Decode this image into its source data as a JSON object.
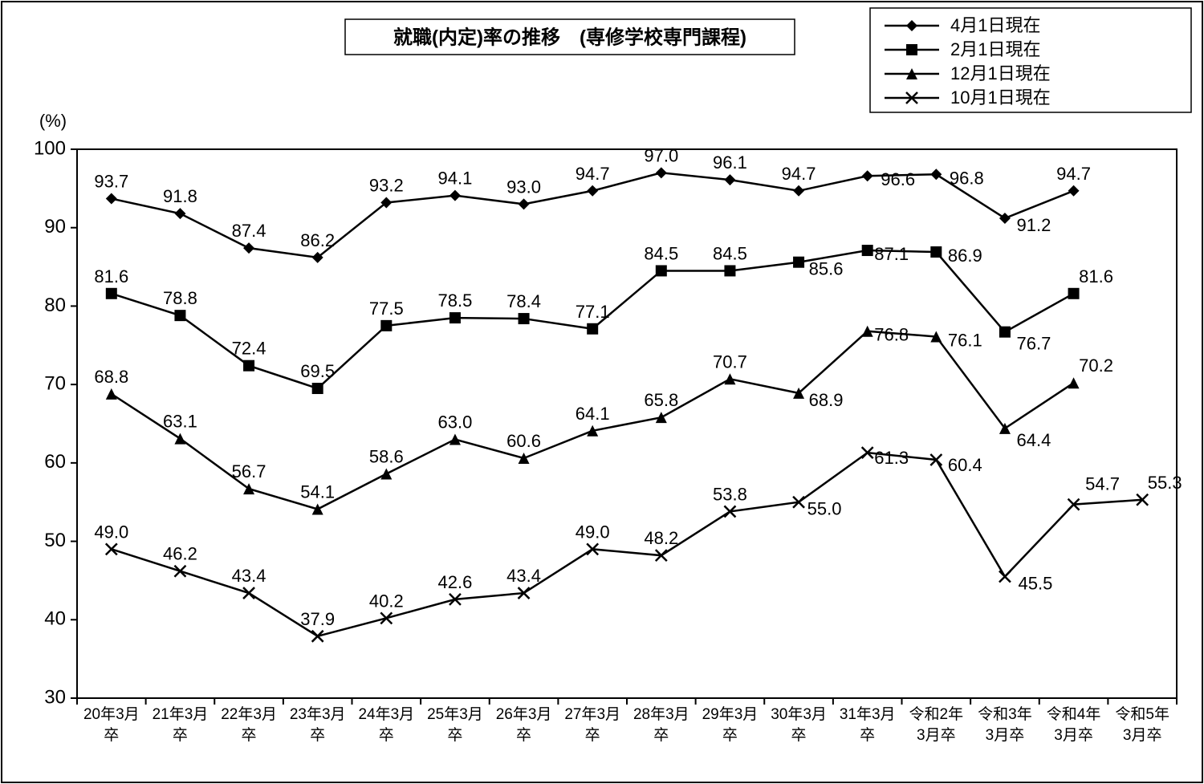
{
  "chart": {
    "type": "line",
    "title": "就職(内定)率の推移　(専修学校専門課程)",
    "title_fontsize": 24,
    "y_unit_label": "(%)",
    "label_fontsize": 22,
    "background_color": "#ffffff",
    "outer_border_color": "#000000",
    "plot_border_color": "#000000",
    "line_color": "#000000",
    "line_width": 2.5,
    "marker_size": 7,
    "data_label_fontsize": 22,
    "tick_label_fontsize": 24,
    "x_tick_label_fontsize": 19,
    "ylim": [
      30,
      100
    ],
    "ytick_step": 10,
    "yticks": [
      30,
      40,
      50,
      60,
      70,
      80,
      90,
      100
    ],
    "categories_line1": [
      "20年3月",
      "21年3月",
      "22年3月",
      "23年3月",
      "24年3月",
      "25年3月",
      "26年3月",
      "27年3月",
      "28年3月",
      "29年3月",
      "30年3月",
      "31年3月",
      "令和2年",
      "令和3年",
      "令和4年",
      "令和5年"
    ],
    "categories_line2": [
      "卒",
      "卒",
      "卒",
      "卒",
      "卒",
      "卒",
      "卒",
      "卒",
      "卒",
      "卒",
      "卒",
      "卒",
      "3月卒",
      "3月卒",
      "3月卒",
      "3月卒"
    ],
    "legend": {
      "position": "top-right",
      "border_color": "#000000",
      "fill": "#ffffff",
      "items": [
        {
          "label": "4月1日現在",
          "marker": "diamond"
        },
        {
          "label": "2月1日現在",
          "marker": "square"
        },
        {
          "label": "12月1日現在",
          "marker": "triangle"
        },
        {
          "label": "10月1日現在",
          "marker": "x"
        }
      ]
    },
    "series": [
      {
        "name": "4月1日現在",
        "marker": "diamond",
        "values": [
          93.7,
          91.8,
          87.4,
          86.2,
          93.2,
          94.1,
          93.0,
          94.7,
          97.0,
          96.1,
          94.7,
          96.6,
          96.8,
          91.2,
          94.7,
          null
        ],
        "label_dy": [
          -14,
          -14,
          -14,
          -14,
          -14,
          -14,
          -14,
          -14,
          -14,
          -14,
          -14,
          12,
          12,
          16,
          -14,
          0
        ],
        "label_dx": [
          0,
          0,
          0,
          0,
          0,
          0,
          0,
          0,
          0,
          0,
          0,
          38,
          38,
          36,
          0,
          0
        ]
      },
      {
        "name": "2月1日現在",
        "marker": "square",
        "values": [
          81.6,
          78.8,
          72.4,
          69.5,
          77.5,
          78.5,
          78.4,
          77.1,
          84.5,
          84.5,
          85.6,
          87.1,
          86.9,
          76.7,
          81.6,
          null
        ],
        "label_dy": [
          -14,
          -14,
          -14,
          -14,
          -14,
          -14,
          -14,
          -14,
          -14,
          -14,
          16,
          12,
          12,
          22,
          -14,
          0
        ],
        "label_dx": [
          0,
          0,
          0,
          0,
          0,
          0,
          0,
          0,
          0,
          0,
          34,
          30,
          36,
          36,
          28,
          0
        ]
      },
      {
        "name": "12月1日現在",
        "marker": "triangle",
        "values": [
          68.8,
          63.1,
          56.7,
          54.1,
          58.6,
          63.0,
          60.6,
          64.1,
          65.8,
          70.7,
          68.9,
          76.8,
          76.1,
          64.4,
          70.2,
          null
        ],
        "label_dy": [
          -14,
          -14,
          -14,
          -14,
          -14,
          -14,
          -14,
          -14,
          -14,
          -14,
          16,
          12,
          12,
          22,
          -14,
          0
        ],
        "label_dx": [
          0,
          0,
          0,
          0,
          0,
          0,
          0,
          0,
          0,
          0,
          34,
          30,
          36,
          36,
          28,
          0
        ]
      },
      {
        "name": "10月1日現在",
        "marker": "x",
        "values": [
          49.0,
          46.2,
          43.4,
          37.9,
          40.2,
          42.6,
          43.4,
          49.0,
          48.2,
          53.8,
          55.0,
          61.3,
          60.4,
          45.5,
          54.7,
          55.3
        ],
        "label_dy": [
          -14,
          -14,
          -14,
          -14,
          -14,
          -14,
          -14,
          -14,
          -14,
          -14,
          16,
          14,
          14,
          16,
          -18,
          -14
        ],
        "label_dx": [
          0,
          0,
          0,
          0,
          0,
          0,
          0,
          0,
          0,
          0,
          32,
          30,
          36,
          38,
          36,
          28
        ]
      }
    ]
  }
}
